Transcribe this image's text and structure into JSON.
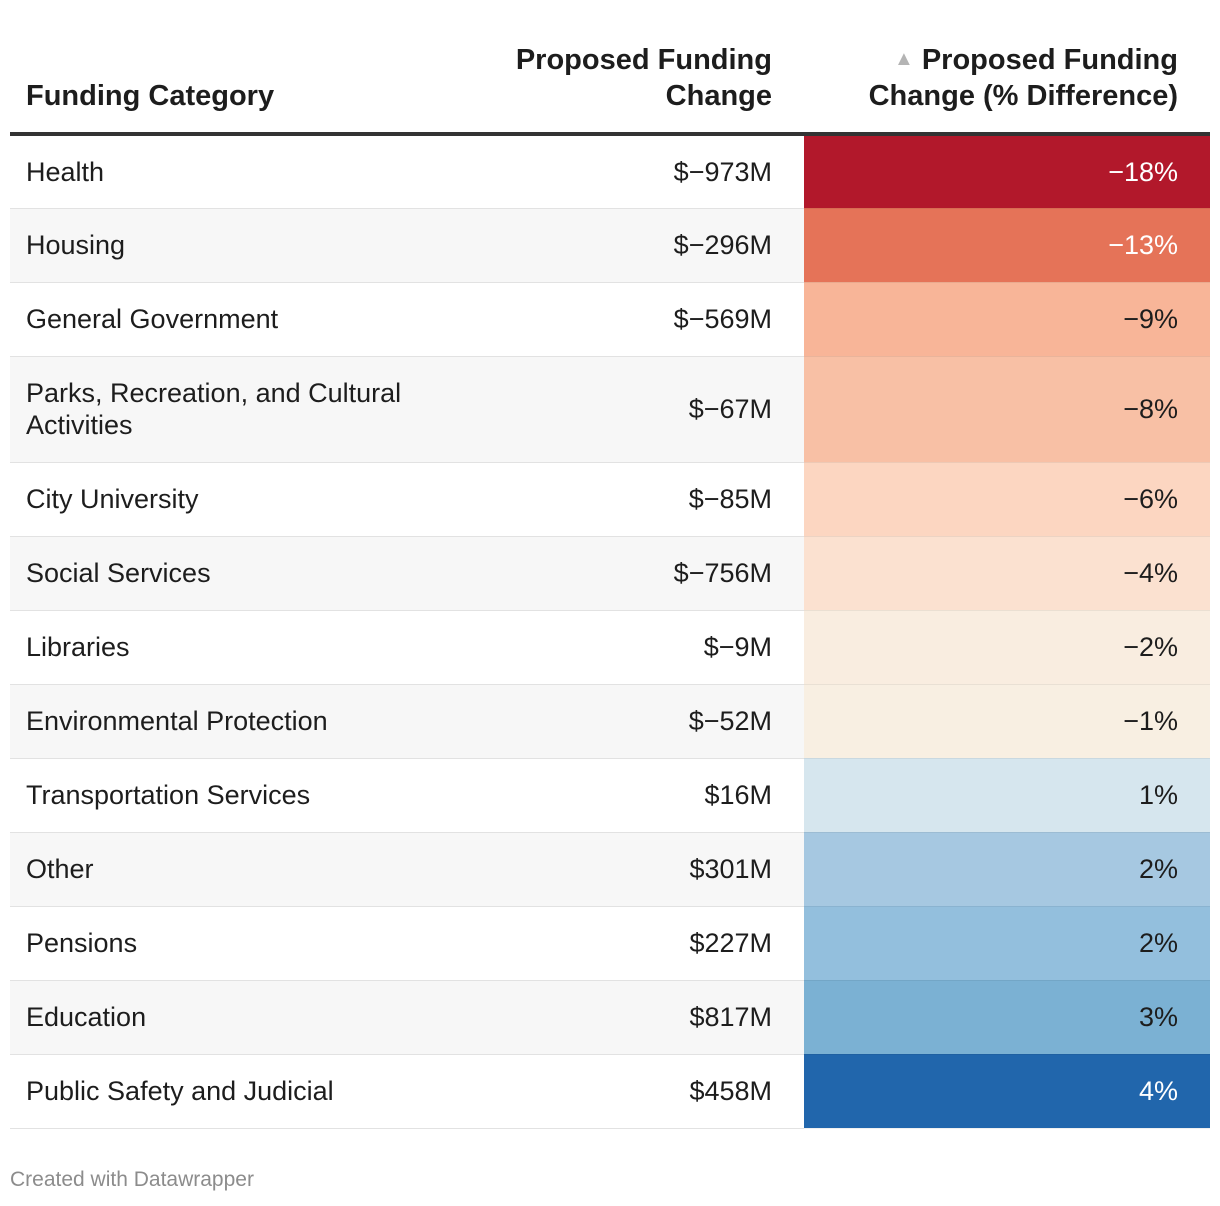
{
  "chart_data": {
    "type": "table",
    "columns": [
      "Funding Category",
      "Proposed Funding Change",
      "Proposed Funding Change (% Difference)"
    ],
    "sort_indicator": "▲",
    "rows": [
      {
        "category": "Health",
        "amount": "$−973M",
        "pct_label": "−18%",
        "pct": -18,
        "color": "#b2182b",
        "text_color": "#ffffff"
      },
      {
        "category": "Housing",
        "amount": "$−296M",
        "pct_label": "−13%",
        "pct": -13,
        "color": "#e57358",
        "text_color": "#ffffff"
      },
      {
        "category": "General Government",
        "amount": "$−569M",
        "pct_label": "−9%",
        "pct": -9,
        "color": "#f8b598",
        "text_color": "#1d1d1d"
      },
      {
        "category": "Parks, Recreation, and Cultural Activities",
        "amount": "$−67M",
        "pct_label": "−8%",
        "pct": -8,
        "color": "#f8c0a5",
        "text_color": "#1d1d1d"
      },
      {
        "category": "City University",
        "amount": "$−85M",
        "pct_label": "−6%",
        "pct": -6,
        "color": "#fcd6c1",
        "text_color": "#1d1d1d"
      },
      {
        "category": "Social Services",
        "amount": "$−756M",
        "pct_label": "−4%",
        "pct": -4,
        "color": "#fbe1d0",
        "text_color": "#1d1d1d"
      },
      {
        "category": "Libraries",
        "amount": "$−9M",
        "pct_label": "−2%",
        "pct": -2,
        "color": "#f9ede0",
        "text_color": "#1d1d1d"
      },
      {
        "category": "Environmental Protection",
        "amount": "$−52M",
        "pct_label": "−1%",
        "pct": -1,
        "color": "#f8efe2",
        "text_color": "#1d1d1d"
      },
      {
        "category": "Transportation Services",
        "amount": "$16M",
        "pct_label": "1%",
        "pct": 1,
        "color": "#d6e6ee",
        "text_color": "#1d1d1d"
      },
      {
        "category": "Other",
        "amount": "$301M",
        "pct_label": "2%",
        "pct": 2,
        "color": "#a6c8e1",
        "text_color": "#1d1d1d"
      },
      {
        "category": "Pensions",
        "amount": "$227M",
        "pct_label": "2%",
        "pct": 2,
        "color": "#93bfdd",
        "text_color": "#1d1d1d"
      },
      {
        "category": "Education",
        "amount": "$817M",
        "pct_label": "3%",
        "pct": 3,
        "color": "#7bb1d3",
        "text_color": "#1d1d1d"
      },
      {
        "category": "Public Safety and Judicial",
        "amount": "$458M",
        "pct_label": "4%",
        "pct": 4,
        "color": "#2166ac",
        "text_color": "#ffffff"
      }
    ]
  },
  "footer": {
    "credit": "Created with Datawrapper"
  }
}
